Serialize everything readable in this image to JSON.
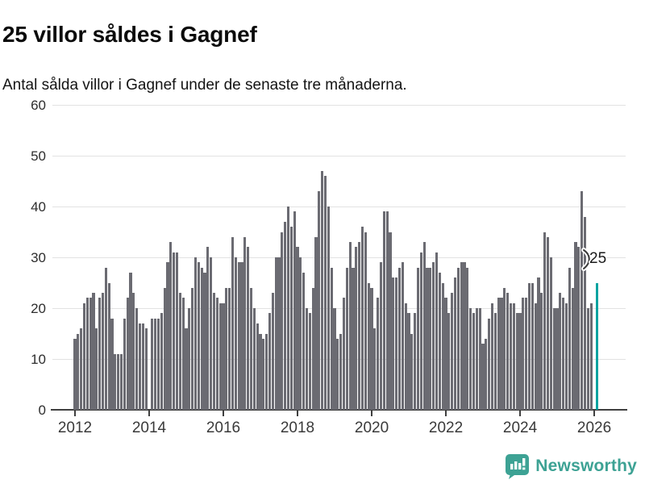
{
  "header": {
    "title": "25 villor såldes i Gagnef",
    "subtitle": "Antal sålda villor i Gagnef under de senaste tre månaderna."
  },
  "annotation": {
    "label": "25"
  },
  "branding": {
    "name": "Newsworthy",
    "color": "#3da294"
  },
  "colors": {
    "bar": "#6b6b72",
    "highlight_bar": "#0ba3a0",
    "gridline": "#e2e2e2",
    "axis_line": "#3f3f3f",
    "axis_text": "#3a3a3a"
  },
  "chart_data": {
    "type": "bar",
    "title": "25 villor såldes i Gagnef",
    "subtitle": "Antal sålda villor i Gagnef under de senaste tre månaderna.",
    "xlabel": "",
    "ylabel": "",
    "x_start_month": "2012-01",
    "x_end_month": "2026-02",
    "x_tick_labels": [
      "2012",
      "2014",
      "2016",
      "2018",
      "2020",
      "2022",
      "2024",
      "2026"
    ],
    "y_tick_labels": [
      "0",
      "10",
      "20",
      "30",
      "40",
      "50",
      "60"
    ],
    "ylim": [
      0,
      60
    ],
    "grid": "horizontal",
    "legend": "none",
    "highlight_index": 169,
    "highlight_value": 25,
    "values_by_year": {
      "2012": [
        14,
        15,
        16,
        21,
        22,
        22,
        23,
        16,
        22,
        23,
        28,
        25
      ],
      "2013": [
        18,
        11,
        11,
        11,
        18,
        22,
        27,
        23,
        20,
        17,
        17,
        16
      ],
      "2014": [
        0,
        18,
        18,
        18,
        19,
        24,
        29,
        33,
        31,
        31,
        23,
        22
      ],
      "2015": [
        16,
        20,
        24,
        30,
        29,
        28,
        27,
        32,
        30,
        23,
        22,
        21
      ],
      "2016": [
        21,
        24,
        24,
        34,
        30,
        29,
        29,
        34,
        32,
        24,
        20,
        17
      ],
      "2017": [
        15,
        14,
        15,
        19,
        23,
        30,
        30,
        35,
        37,
        40,
        36,
        39
      ],
      "2018": [
        32,
        30,
        27,
        20,
        19,
        24,
        34,
        43,
        47,
        46,
        40,
        28
      ],
      "2019": [
        20,
        14,
        15,
        22,
        28,
        33,
        28,
        32,
        33,
        36,
        35,
        25
      ],
      "2020": [
        24,
        16,
        22,
        29,
        39,
        39,
        35,
        26,
        26,
        28,
        29,
        21
      ],
      "2021": [
        19,
        15,
        19,
        28,
        31,
        33,
        28,
        28,
        29,
        31,
        27,
        25
      ],
      "2022": [
        22,
        19,
        23,
        26,
        28,
        29,
        29,
        28,
        20,
        19,
        20,
        20
      ],
      "2023": [
        13,
        14,
        18,
        21,
        19,
        22,
        22,
        24,
        23,
        21,
        21,
        19
      ],
      "2024": [
        19,
        22,
        22,
        25,
        25,
        21,
        26,
        23,
        35,
        34,
        30,
        20
      ],
      "2025": [
        20,
        23,
        22,
        21,
        28,
        24,
        33,
        32,
        43,
        38,
        20,
        21
      ],
      "2026": [
        0,
        25
      ]
    }
  }
}
